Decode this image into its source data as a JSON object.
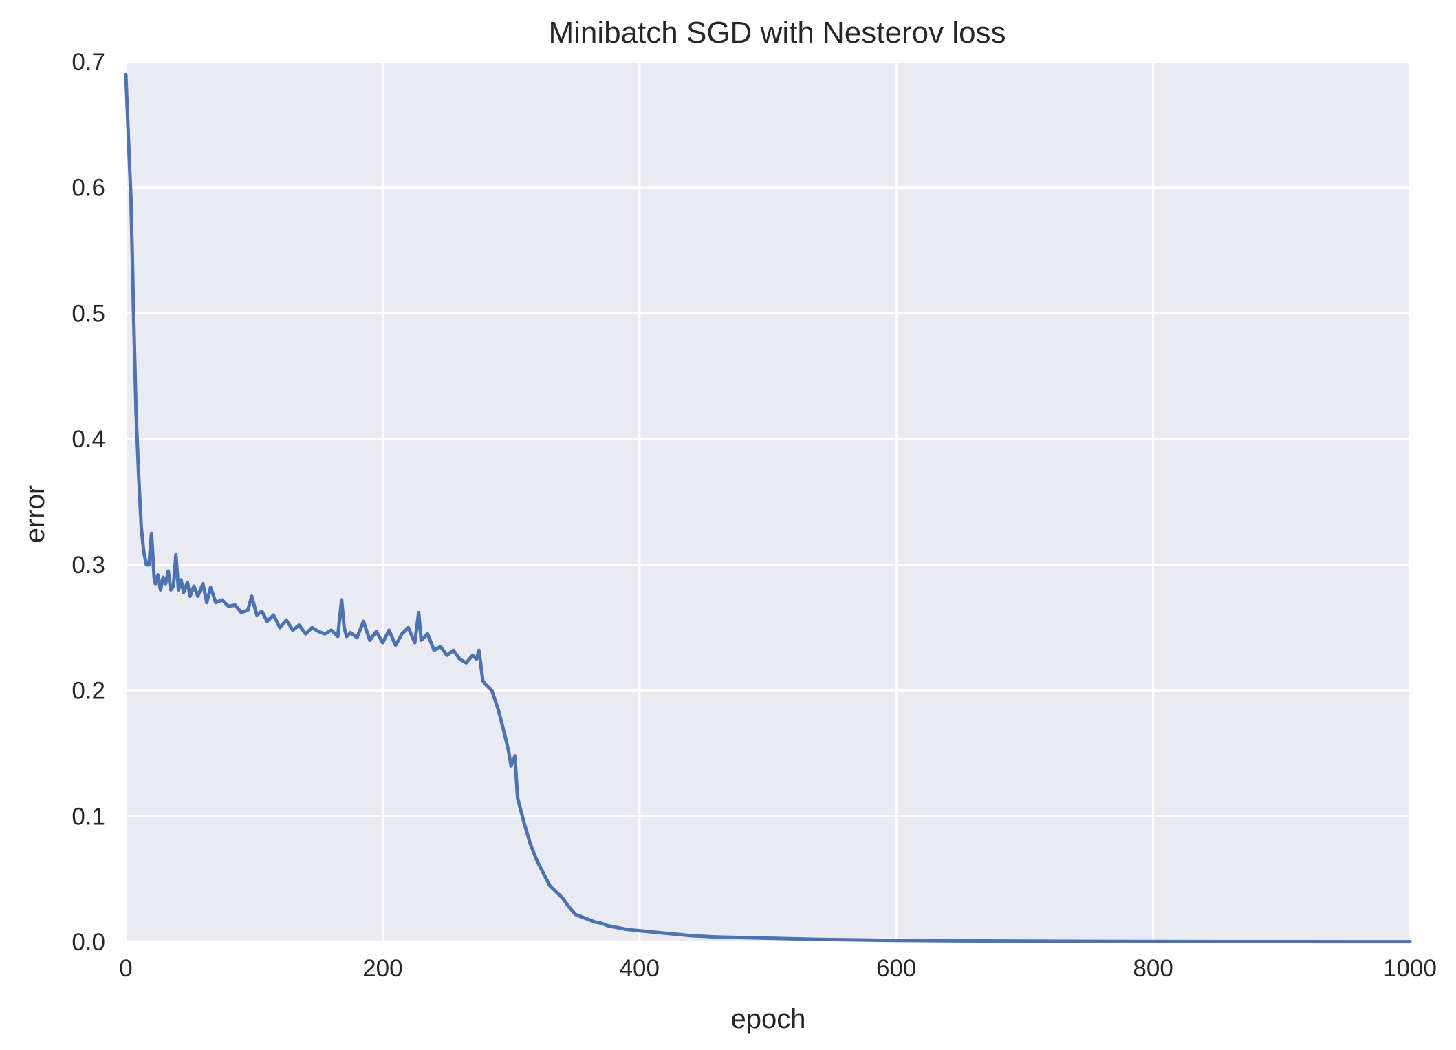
{
  "chart_data": {
    "type": "line",
    "title": "Minibatch SGD with Nesterov loss",
    "xlabel": "epoch",
    "ylabel": "error",
    "xlim": [
      0,
      1000
    ],
    "ylim": [
      0,
      0.7
    ],
    "xticks": [
      0,
      200,
      400,
      600,
      800,
      1000
    ],
    "xtick_labels": [
      "0",
      "200",
      "400",
      "600",
      "800",
      "1000"
    ],
    "yticks": [
      0.0,
      0.1,
      0.2,
      0.3,
      0.4,
      0.5,
      0.6,
      0.7
    ],
    "ytick_labels": [
      "0.0",
      "0.1",
      "0.2",
      "0.3",
      "0.4",
      "0.5",
      "0.6",
      "0.7"
    ],
    "grid": true,
    "legend": "none",
    "colors": {
      "background": "#eaeaf2",
      "grid": "#ffffff",
      "line": "#4c72b0",
      "text": "#262626"
    },
    "series": [
      {
        "x": [
          0,
          2,
          4,
          6,
          8,
          10,
          12,
          14,
          16,
          18,
          20,
          22,
          23,
          25,
          27,
          29,
          31,
          33,
          35,
          37,
          39,
          41,
          43,
          45,
          48,
          50,
          53,
          56,
          60,
          63,
          66,
          70,
          75,
          80,
          85,
          90,
          95,
          98,
          102,
          106,
          110,
          115,
          120,
          125,
          130,
          135,
          140,
          145,
          150,
          155,
          160,
          165,
          168,
          170,
          172,
          175,
          180,
          185,
          190,
          195,
          200,
          205,
          210,
          215,
          220,
          225,
          228,
          230,
          235,
          240,
          245,
          250,
          255,
          260,
          265,
          270,
          273,
          275,
          278,
          280,
          285,
          290,
          295,
          298,
          300,
          303,
          305,
          310,
          315,
          320,
          325,
          330,
          335,
          340,
          345,
          350,
          355,
          360,
          365,
          370,
          375,
          380,
          390,
          400,
          410,
          420,
          430,
          440,
          450,
          460,
          480,
          500,
          520,
          540,
          560,
          580,
          600,
          650,
          700,
          750,
          800,
          850,
          900,
          950,
          1000
        ],
        "y": [
          0.69,
          0.64,
          0.59,
          0.5,
          0.42,
          0.37,
          0.33,
          0.31,
          0.3,
          0.3,
          0.325,
          0.29,
          0.285,
          0.292,
          0.28,
          0.29,
          0.285,
          0.295,
          0.28,
          0.283,
          0.308,
          0.28,
          0.288,
          0.278,
          0.286,
          0.275,
          0.283,
          0.275,
          0.285,
          0.27,
          0.282,
          0.27,
          0.272,
          0.267,
          0.268,
          0.262,
          0.264,
          0.275,
          0.26,
          0.263,
          0.255,
          0.26,
          0.25,
          0.256,
          0.248,
          0.252,
          0.245,
          0.25,
          0.247,
          0.245,
          0.248,
          0.243,
          0.272,
          0.25,
          0.243,
          0.246,
          0.242,
          0.255,
          0.24,
          0.247,
          0.238,
          0.248,
          0.236,
          0.245,
          0.25,
          0.238,
          0.262,
          0.24,
          0.245,
          0.232,
          0.235,
          0.228,
          0.232,
          0.225,
          0.222,
          0.228,
          0.225,
          0.232,
          0.208,
          0.205,
          0.2,
          0.185,
          0.165,
          0.152,
          0.14,
          0.148,
          0.115,
          0.095,
          0.078,
          0.065,
          0.055,
          0.045,
          0.04,
          0.035,
          0.028,
          0.022,
          0.02,
          0.018,
          0.016,
          0.015,
          0.013,
          0.012,
          0.01,
          0.009,
          0.008,
          0.007,
          0.006,
          0.005,
          0.0045,
          0.004,
          0.0035,
          0.003,
          0.0025,
          0.002,
          0.0018,
          0.0015,
          0.0012,
          0.0009,
          0.0007,
          0.0005,
          0.0004,
          0.0003,
          0.0003,
          0.0002,
          0.0002
        ]
      }
    ]
  }
}
